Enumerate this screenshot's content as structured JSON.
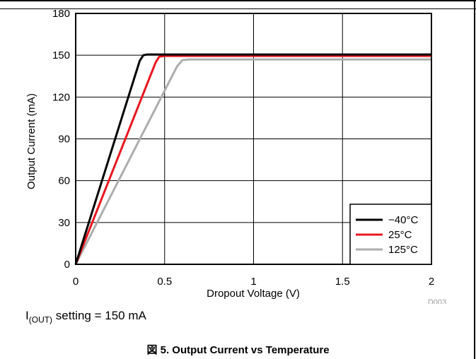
{
  "chart_data": {
    "type": "line",
    "xlabel": "Dropout Voltage (V)",
    "ylabel": "Output Current (mA)",
    "xlim": [
      0,
      2
    ],
    "ylim": [
      0,
      180
    ],
    "xticks": [
      "0",
      "0.5",
      "1",
      "1.5",
      "2"
    ],
    "yticks": [
      "0",
      "30",
      "60",
      "90",
      "120",
      "150",
      "180"
    ],
    "grid": true,
    "legend_position": "bottom-right",
    "series": [
      {
        "name": "−40°C",
        "color": "#000000",
        "x": [
          0,
          0.36,
          0.38,
          0.4,
          2.0
        ],
        "y": [
          0,
          146,
          150,
          150.5,
          150.5
        ]
      },
      {
        "name": "25°C",
        "color": "#e8171f",
        "x": [
          0,
          0.45,
          0.47,
          0.5,
          2.0
        ],
        "y": [
          0,
          145,
          149,
          149.5,
          149.5
        ]
      },
      {
        "name": "125°C",
        "color": "#adadad",
        "x": [
          0,
          0.57,
          0.6,
          0.64,
          2.0
        ],
        "y": [
          0,
          142,
          146.5,
          147,
          147
        ]
      }
    ],
    "figure_id": "D003"
  },
  "note": {
    "prefix": "I",
    "sub": "(OUT)",
    "text": " setting = 150 mA"
  },
  "caption": "図 5. Output Current vs Temperature"
}
